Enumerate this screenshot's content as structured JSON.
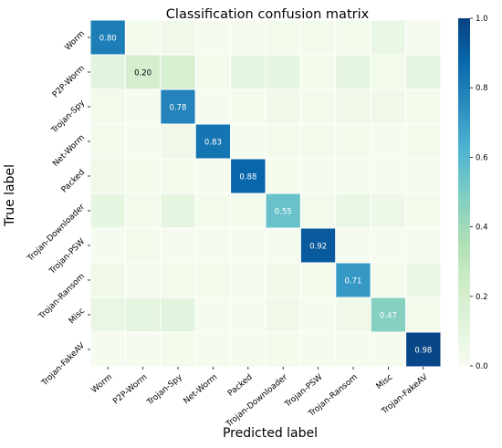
{
  "chart_data": {
    "type": "heatmap",
    "title": "Classification confusion matrix",
    "xlabel": "Predicted label",
    "ylabel": "True label",
    "x_categories": [
      "Worm",
      "P2P-Worm",
      "Trojan-Spy",
      "Net-Worm",
      "Packed",
      "Trojan-Downloader",
      "Trojan-PSW",
      "Trojan-Ransom",
      "Misc",
      "Trojan-FakeAV"
    ],
    "y_categories": [
      "Worm",
      "P2P-Worm",
      "Trojan-Spy",
      "Net-Worm",
      "Packed",
      "Trojan-Downloader",
      "Trojan-PSW",
      "Trojan-Ransom",
      "Misc",
      "Trojan-FakeAV"
    ],
    "values": [
      [
        0.8,
        0.02,
        0.04,
        0.01,
        0.01,
        0.02,
        0.02,
        0.02,
        0.07,
        0.01
      ],
      [
        0.11,
        0.2,
        0.18,
        0.02,
        0.1,
        0.09,
        0.02,
        0.1,
        0.03,
        0.1
      ],
      [
        0.03,
        0.01,
        0.78,
        0.01,
        0.02,
        0.04,
        0.02,
        0.04,
        0.04,
        0.02
      ],
      [
        0.02,
        0.01,
        0.04,
        0.83,
        0.01,
        0.02,
        0.02,
        0.02,
        0.01,
        0.02
      ],
      [
        0.04,
        0.03,
        0.02,
        0.01,
        0.88,
        0.02,
        0.01,
        0.01,
        0.01,
        0.01
      ],
      [
        0.09,
        0.02,
        0.1,
        0.02,
        0.02,
        0.55,
        0.03,
        0.07,
        0.05,
        0.02
      ],
      [
        0.01,
        0.02,
        0.01,
        0.01,
        0.01,
        0.01,
        0.92,
        0.01,
        0.01,
        0.01
      ],
      [
        0.04,
        0.01,
        0.02,
        0.02,
        0.01,
        0.04,
        0.02,
        0.71,
        0.03,
        0.07
      ],
      [
        0.08,
        0.1,
        0.11,
        0.01,
        0.01,
        0.04,
        0.01,
        0.04,
        0.47,
        0.02
      ],
      [
        0.01,
        0.01,
        0.02,
        0.01,
        0.01,
        0.02,
        0.01,
        0.01,
        0.01,
        0.98
      ]
    ],
    "annotations": [
      {
        "row": 0,
        "col": 0,
        "text": "0.80"
      },
      {
        "row": 1,
        "col": 1,
        "text": "0.20"
      },
      {
        "row": 2,
        "col": 2,
        "text": "0.78"
      },
      {
        "row": 3,
        "col": 3,
        "text": "0.83"
      },
      {
        "row": 4,
        "col": 4,
        "text": "0.88"
      },
      {
        "row": 5,
        "col": 5,
        "text": "0.55"
      },
      {
        "row": 6,
        "col": 6,
        "text": "0.92"
      },
      {
        "row": 7,
        "col": 7,
        "text": "0.71"
      },
      {
        "row": 8,
        "col": 8,
        "text": "0.47"
      },
      {
        "row": 9,
        "col": 9,
        "text": "0.98"
      }
    ],
    "colorbar": {
      "colormap": "GnBu",
      "range": [
        0.0,
        1.0
      ],
      "ticks": [
        "0.0",
        "0.2",
        "0.4",
        "0.6",
        "0.8",
        "1.0"
      ]
    },
    "grid": false
  }
}
